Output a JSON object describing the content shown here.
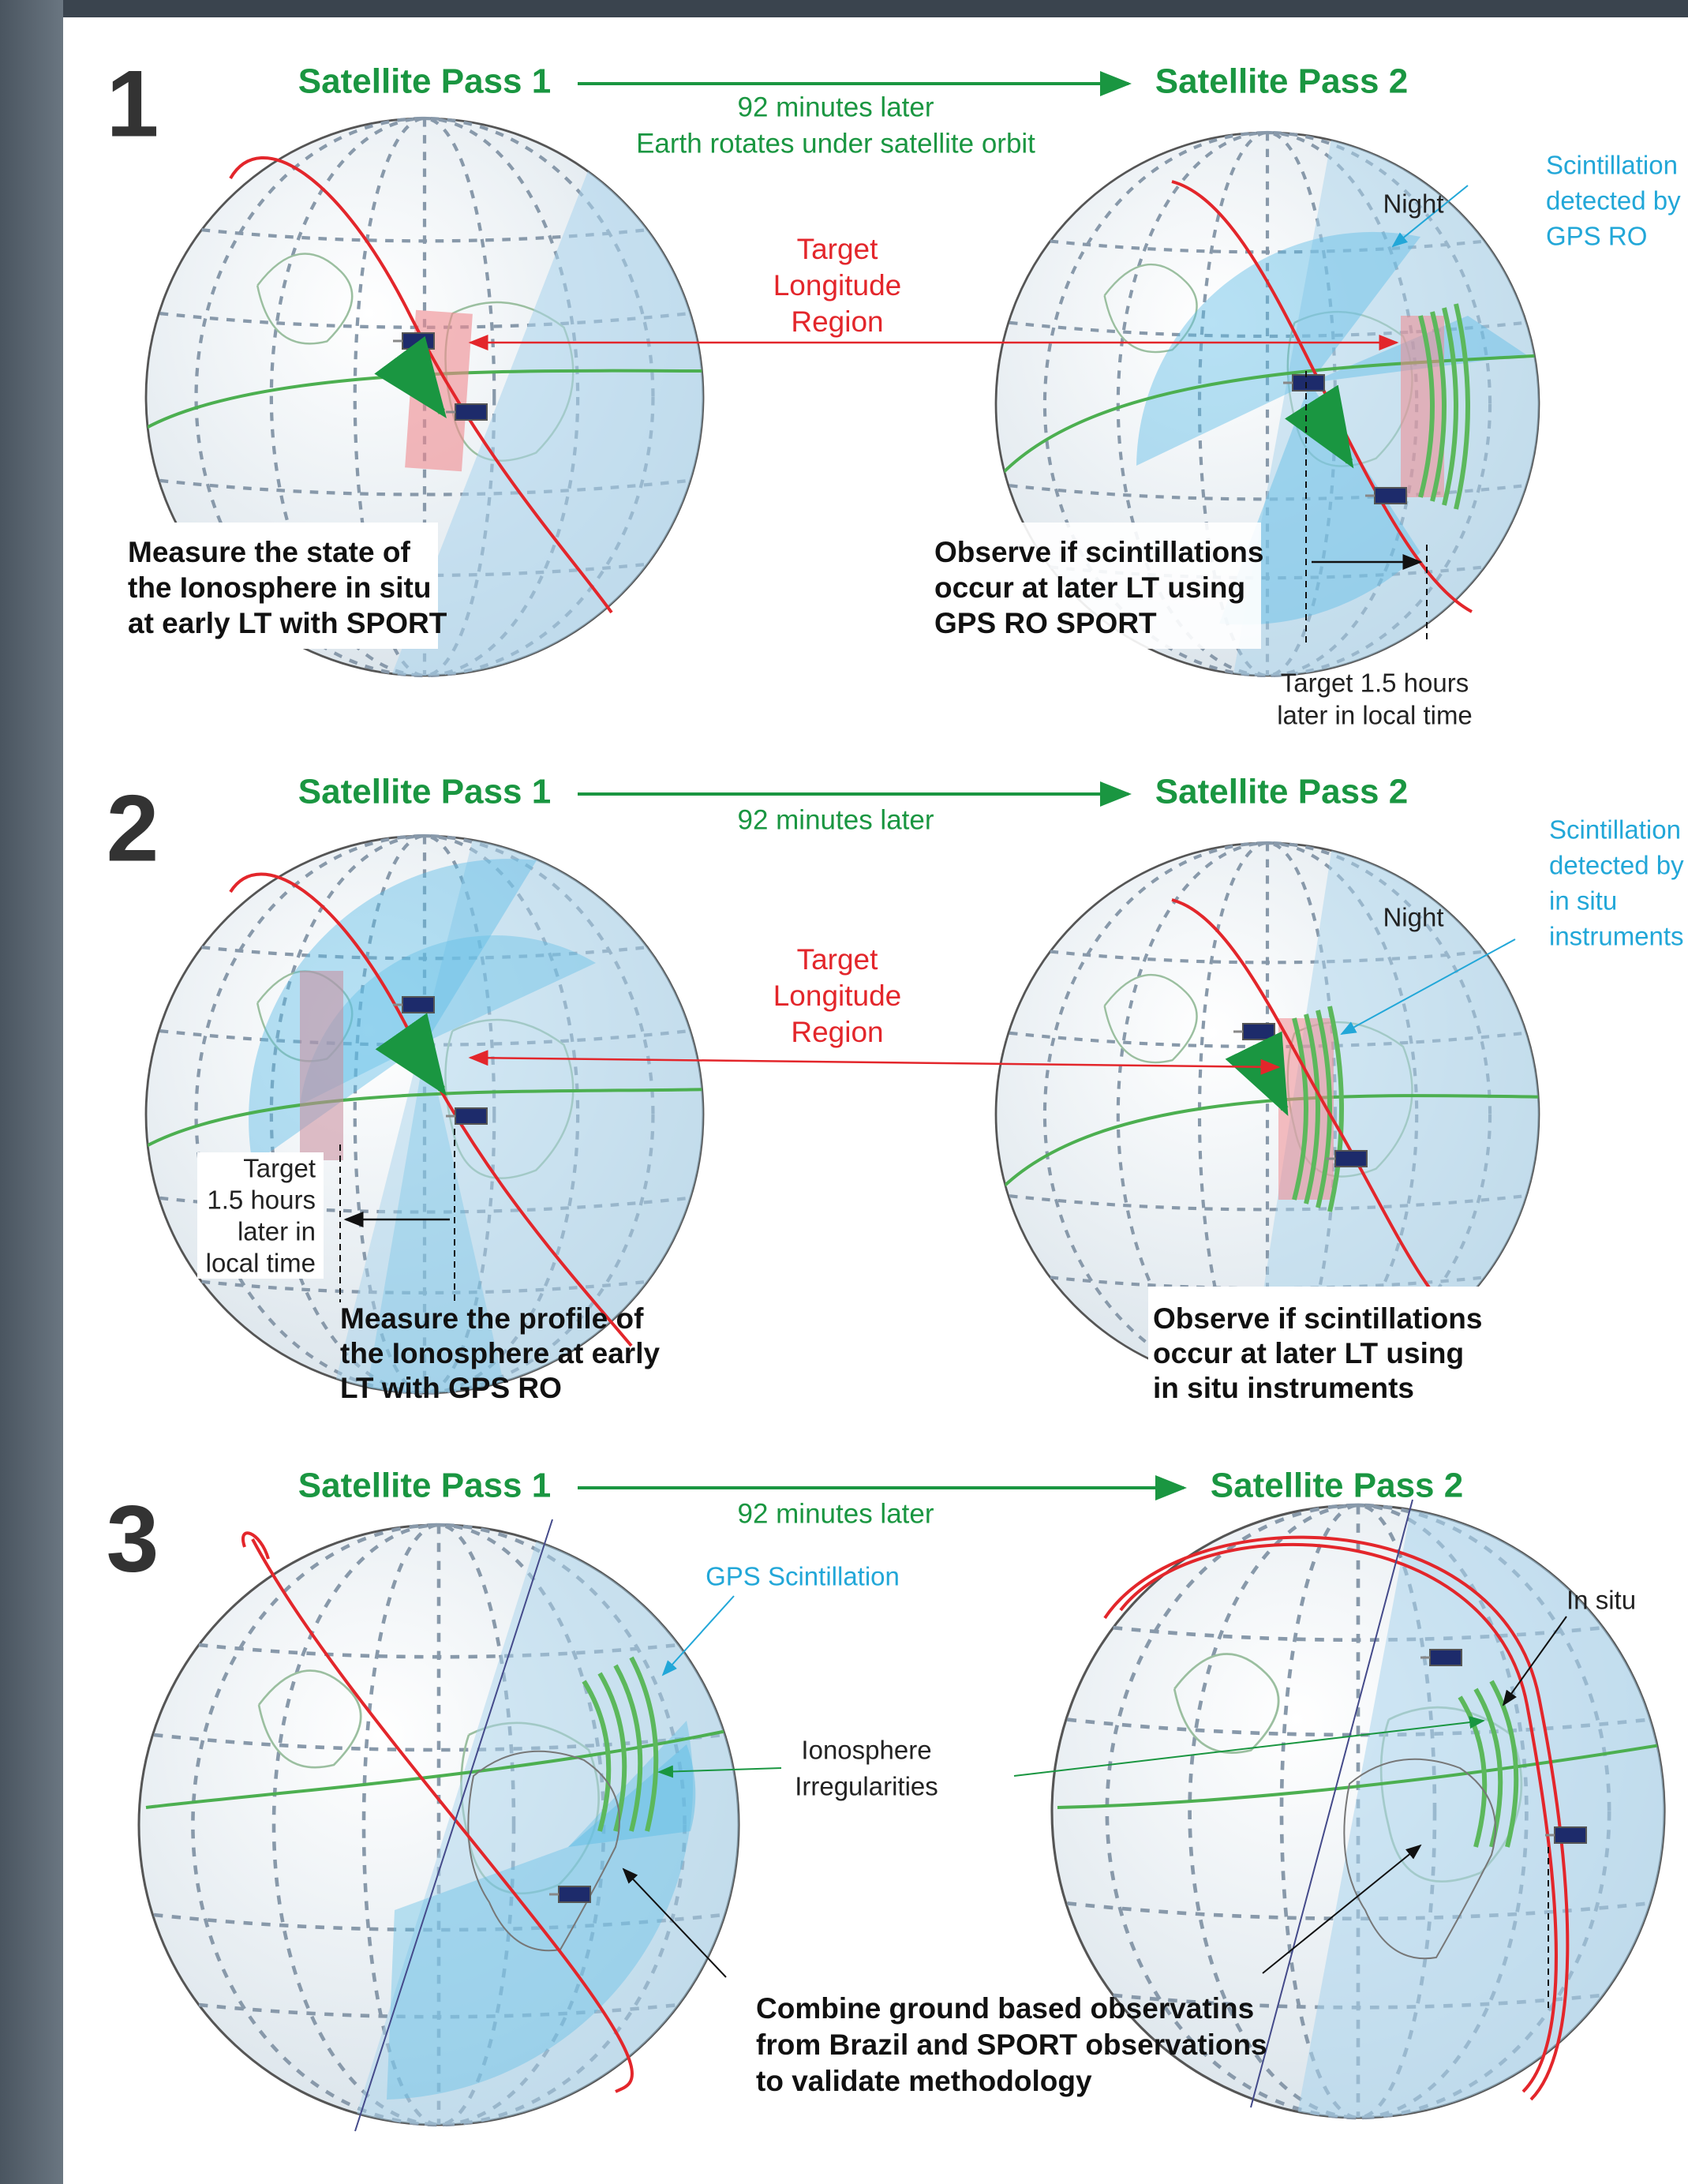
{
  "panels": [
    {
      "number": "1",
      "pass_1": "Satellite Pass 1",
      "pass_2": "Satellite Pass 2",
      "timing": [
        "92 minutes later",
        "Earth rotates under satellite orbit"
      ],
      "target_region": [
        "Target",
        "Longitude",
        "Region"
      ],
      "night": "Night",
      "scintillation": [
        "Scintillation",
        "detected by",
        "GPS RO"
      ],
      "pass_1_note": [
        "Measure the state of",
        "the Ionosphere in situ",
        "at early LT with SPORT"
      ],
      "pass_2_note": [
        "Observe if scintillations",
        "occur at later LT using",
        "GPS RO SPORT"
      ],
      "target_time": [
        "Target 1.5 hours",
        "later in local time"
      ]
    },
    {
      "number": "2",
      "pass_1": "Satellite Pass 1",
      "pass_2": "Satellite Pass 2",
      "timing": [
        "92 minutes later"
      ],
      "target_region": [
        "Target",
        "Longitude",
        "Region"
      ],
      "night": "Night",
      "scintillation": [
        "Scintillation",
        "detected by",
        "in situ",
        "instruments"
      ],
      "pass_1_note": [
        "Measure the profile of",
        "the Ionosphere at early",
        "LT with GPS RO"
      ],
      "pass_2_note": [
        "Observe if scintillations",
        "occur at later LT using",
        "in situ instruments"
      ],
      "target_time": [
        "Target",
        "1.5 hours",
        "later in",
        "local time"
      ]
    },
    {
      "number": "3",
      "pass_1": "Satellite Pass 1",
      "pass_2": "Satellite Pass 2",
      "timing": [
        "92 minutes later"
      ],
      "gps_scintillation": "GPS Scintillation",
      "irregularities": [
        "Ionosphere",
        "Irregularities"
      ],
      "in_situ": "In situ",
      "combine": [
        "Combine ground based observatins",
        "from Brazil and SPORT observations",
        "to validate methodology"
      ]
    }
  ]
}
